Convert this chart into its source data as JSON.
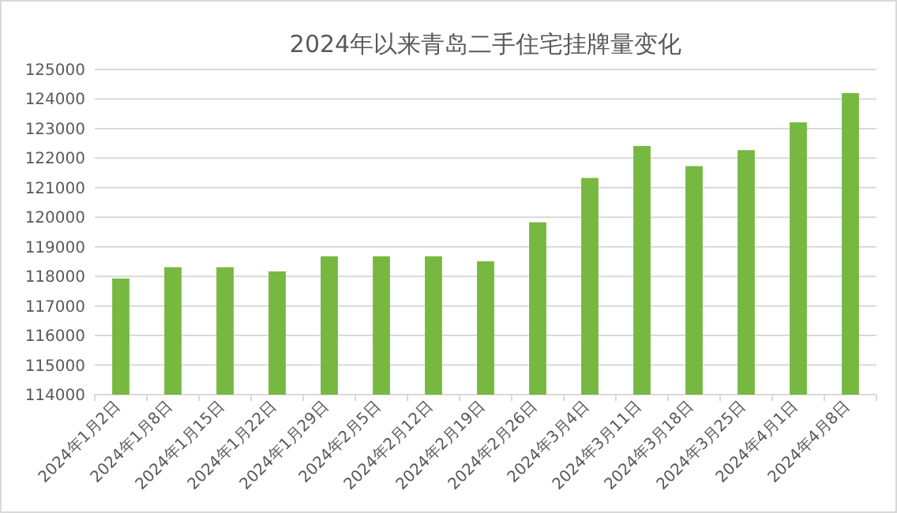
{
  "chart_data": {
    "type": "bar",
    "title": "2024年以来青岛二手住宅挂牌量变化",
    "categories": [
      "2024年1月2日",
      "2024年1月8日",
      "2024年1月15日",
      "2024年1月22日",
      "2024年1月29日",
      "2024年2月5日",
      "2024年2月12日",
      "2024年2月19日",
      "2024年2月26日",
      "2024年3月4日",
      "2024年3月11日",
      "2024年3月18日",
      "2024年3月25日",
      "2024年4月1日",
      "2024年4月8日"
    ],
    "values": [
      117930,
      118310,
      118310,
      118170,
      118680,
      118680,
      118680,
      118510,
      119830,
      121330,
      122410,
      121730,
      122270,
      123210,
      124200
    ],
    "color": "#76b840",
    "ylim": [
      114000,
      125000
    ],
    "yticks": [
      114000,
      115000,
      116000,
      117000,
      118000,
      119000,
      120000,
      121000,
      122000,
      123000,
      124000,
      125000
    ],
    "grid": "y"
  }
}
